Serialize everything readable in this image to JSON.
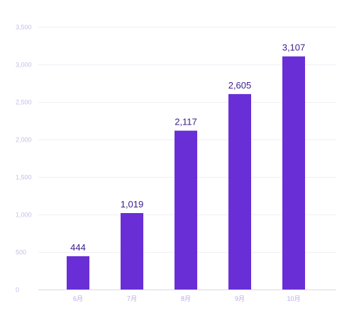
{
  "chart_data": {
    "type": "bar",
    "categories": [
      "6月",
      "7月",
      "8月",
      "9月",
      "10月"
    ],
    "values": [
      444,
      1019,
      2117,
      2605,
      3107
    ],
    "value_labels": [
      "444",
      "1,019",
      "2,117",
      "2,605",
      "3,107"
    ],
    "ylim": [
      0,
      3500
    ],
    "yticks": [
      0,
      500,
      1000,
      1500,
      2000,
      2500,
      3000,
      3500
    ],
    "ytick_labels": [
      "0",
      "500",
      "1,000",
      "1,500",
      "2,000",
      "2,500",
      "3,000",
      "3,500"
    ],
    "title": "",
    "xlabel": "",
    "ylabel": "",
    "grid": true,
    "colors": {
      "bar": "#6a2ed6",
      "grid": "#f0eef5",
      "tick_text": "#c7bde6",
      "value_text": "#3a1d8a"
    }
  }
}
